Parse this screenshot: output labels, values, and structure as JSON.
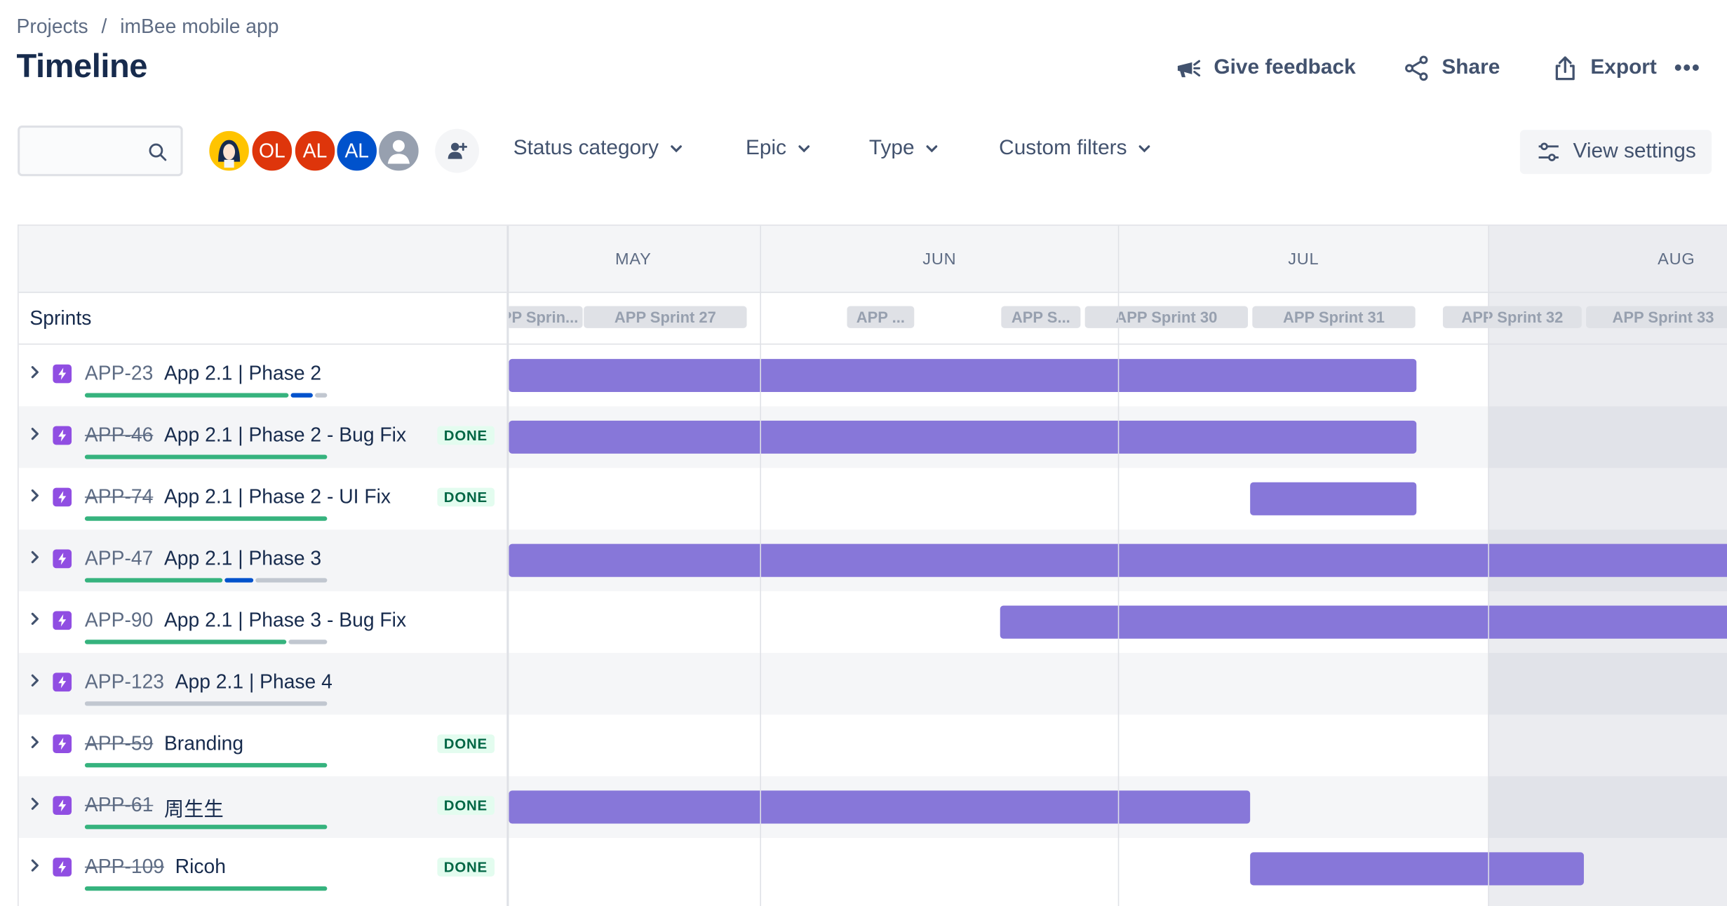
{
  "breadcrumb": {
    "projects": "Projects",
    "separator": "/",
    "project": "imBee mobile app"
  },
  "page": {
    "title": "Timeline"
  },
  "header_actions": {
    "feedback": "Give feedback",
    "share": "Share",
    "export": "Export",
    "more": "•••"
  },
  "search": {
    "placeholder": ""
  },
  "avatars": [
    {
      "initials": "",
      "color": "#ffc400",
      "kind": "photo"
    },
    {
      "initials": "OL",
      "color": "#de350b"
    },
    {
      "initials": "AL",
      "color": "#de350b"
    },
    {
      "initials": "AL",
      "color": "#0052cc"
    },
    {
      "initials": "",
      "color": "#97a0af",
      "kind": "default"
    }
  ],
  "filters": {
    "status": "Status category",
    "epic": "Epic",
    "type": "Type",
    "custom": "Custom filters"
  },
  "view_settings": "View settings",
  "grid": {
    "sprints_label": "Sprints",
    "months": [
      "MAY",
      "JUN",
      "JUL",
      "AUG"
    ],
    "sprints": [
      "APP Sprin...",
      "APP Sprint 27",
      "APP ...",
      "APP S...",
      "APP Sprint 30",
      "APP Sprint 31",
      "APP Sprint 32",
      "APP Sprint 33"
    ]
  },
  "done_label": "DONE",
  "epics": [
    {
      "key": "APP-23",
      "summary": "App 2.1 | Phase 2",
      "done": false,
      "progress": {
        "done": 0.84,
        "in_progress": 0.09,
        "todo": 0.05
      }
    },
    {
      "key": "APP-46",
      "summary": "App 2.1 | Phase 2 - Bug Fix",
      "done": true,
      "progress": {
        "done": 1,
        "in_progress": 0,
        "todo": 0
      }
    },
    {
      "key": "APP-74",
      "summary": "App 2.1 | Phase 2 - UI Fix",
      "done": true,
      "progress": {
        "done": 1,
        "in_progress": 0,
        "todo": 0
      }
    },
    {
      "key": "APP-47",
      "summary": "App 2.1 | Phase 3",
      "done": false,
      "progress": {
        "done": 0.58,
        "in_progress": 0.12,
        "todo": 0.3
      }
    },
    {
      "key": "APP-90",
      "summary": "App 2.1 | Phase 3 - Bug Fix",
      "done": false,
      "progress": {
        "done": 0.84,
        "in_progress": 0,
        "todo": 0.16
      }
    },
    {
      "key": "APP-123",
      "summary": "App 2.1 | Phase 4",
      "done": false,
      "progress": {
        "done": 0,
        "in_progress": 0,
        "todo": 1
      }
    },
    {
      "key": "APP-59",
      "summary": "Branding",
      "done": true,
      "progress": {
        "done": 1,
        "in_progress": 0,
        "todo": 0
      }
    },
    {
      "key": "APP-61",
      "summary": "周生生",
      "done": true,
      "progress": {
        "done": 1,
        "in_progress": 0,
        "todo": 0
      }
    },
    {
      "key": "APP-109",
      "summary": "Ricoh",
      "done": true,
      "progress": {
        "done": 1,
        "in_progress": 0,
        "todo": 0
      }
    }
  ],
  "colors": {
    "bar": "#8777d9",
    "done": "#36b37e",
    "in_progress": "#0052cc",
    "todo": "#c1c7d0",
    "epic_icon": "#904ee2"
  }
}
